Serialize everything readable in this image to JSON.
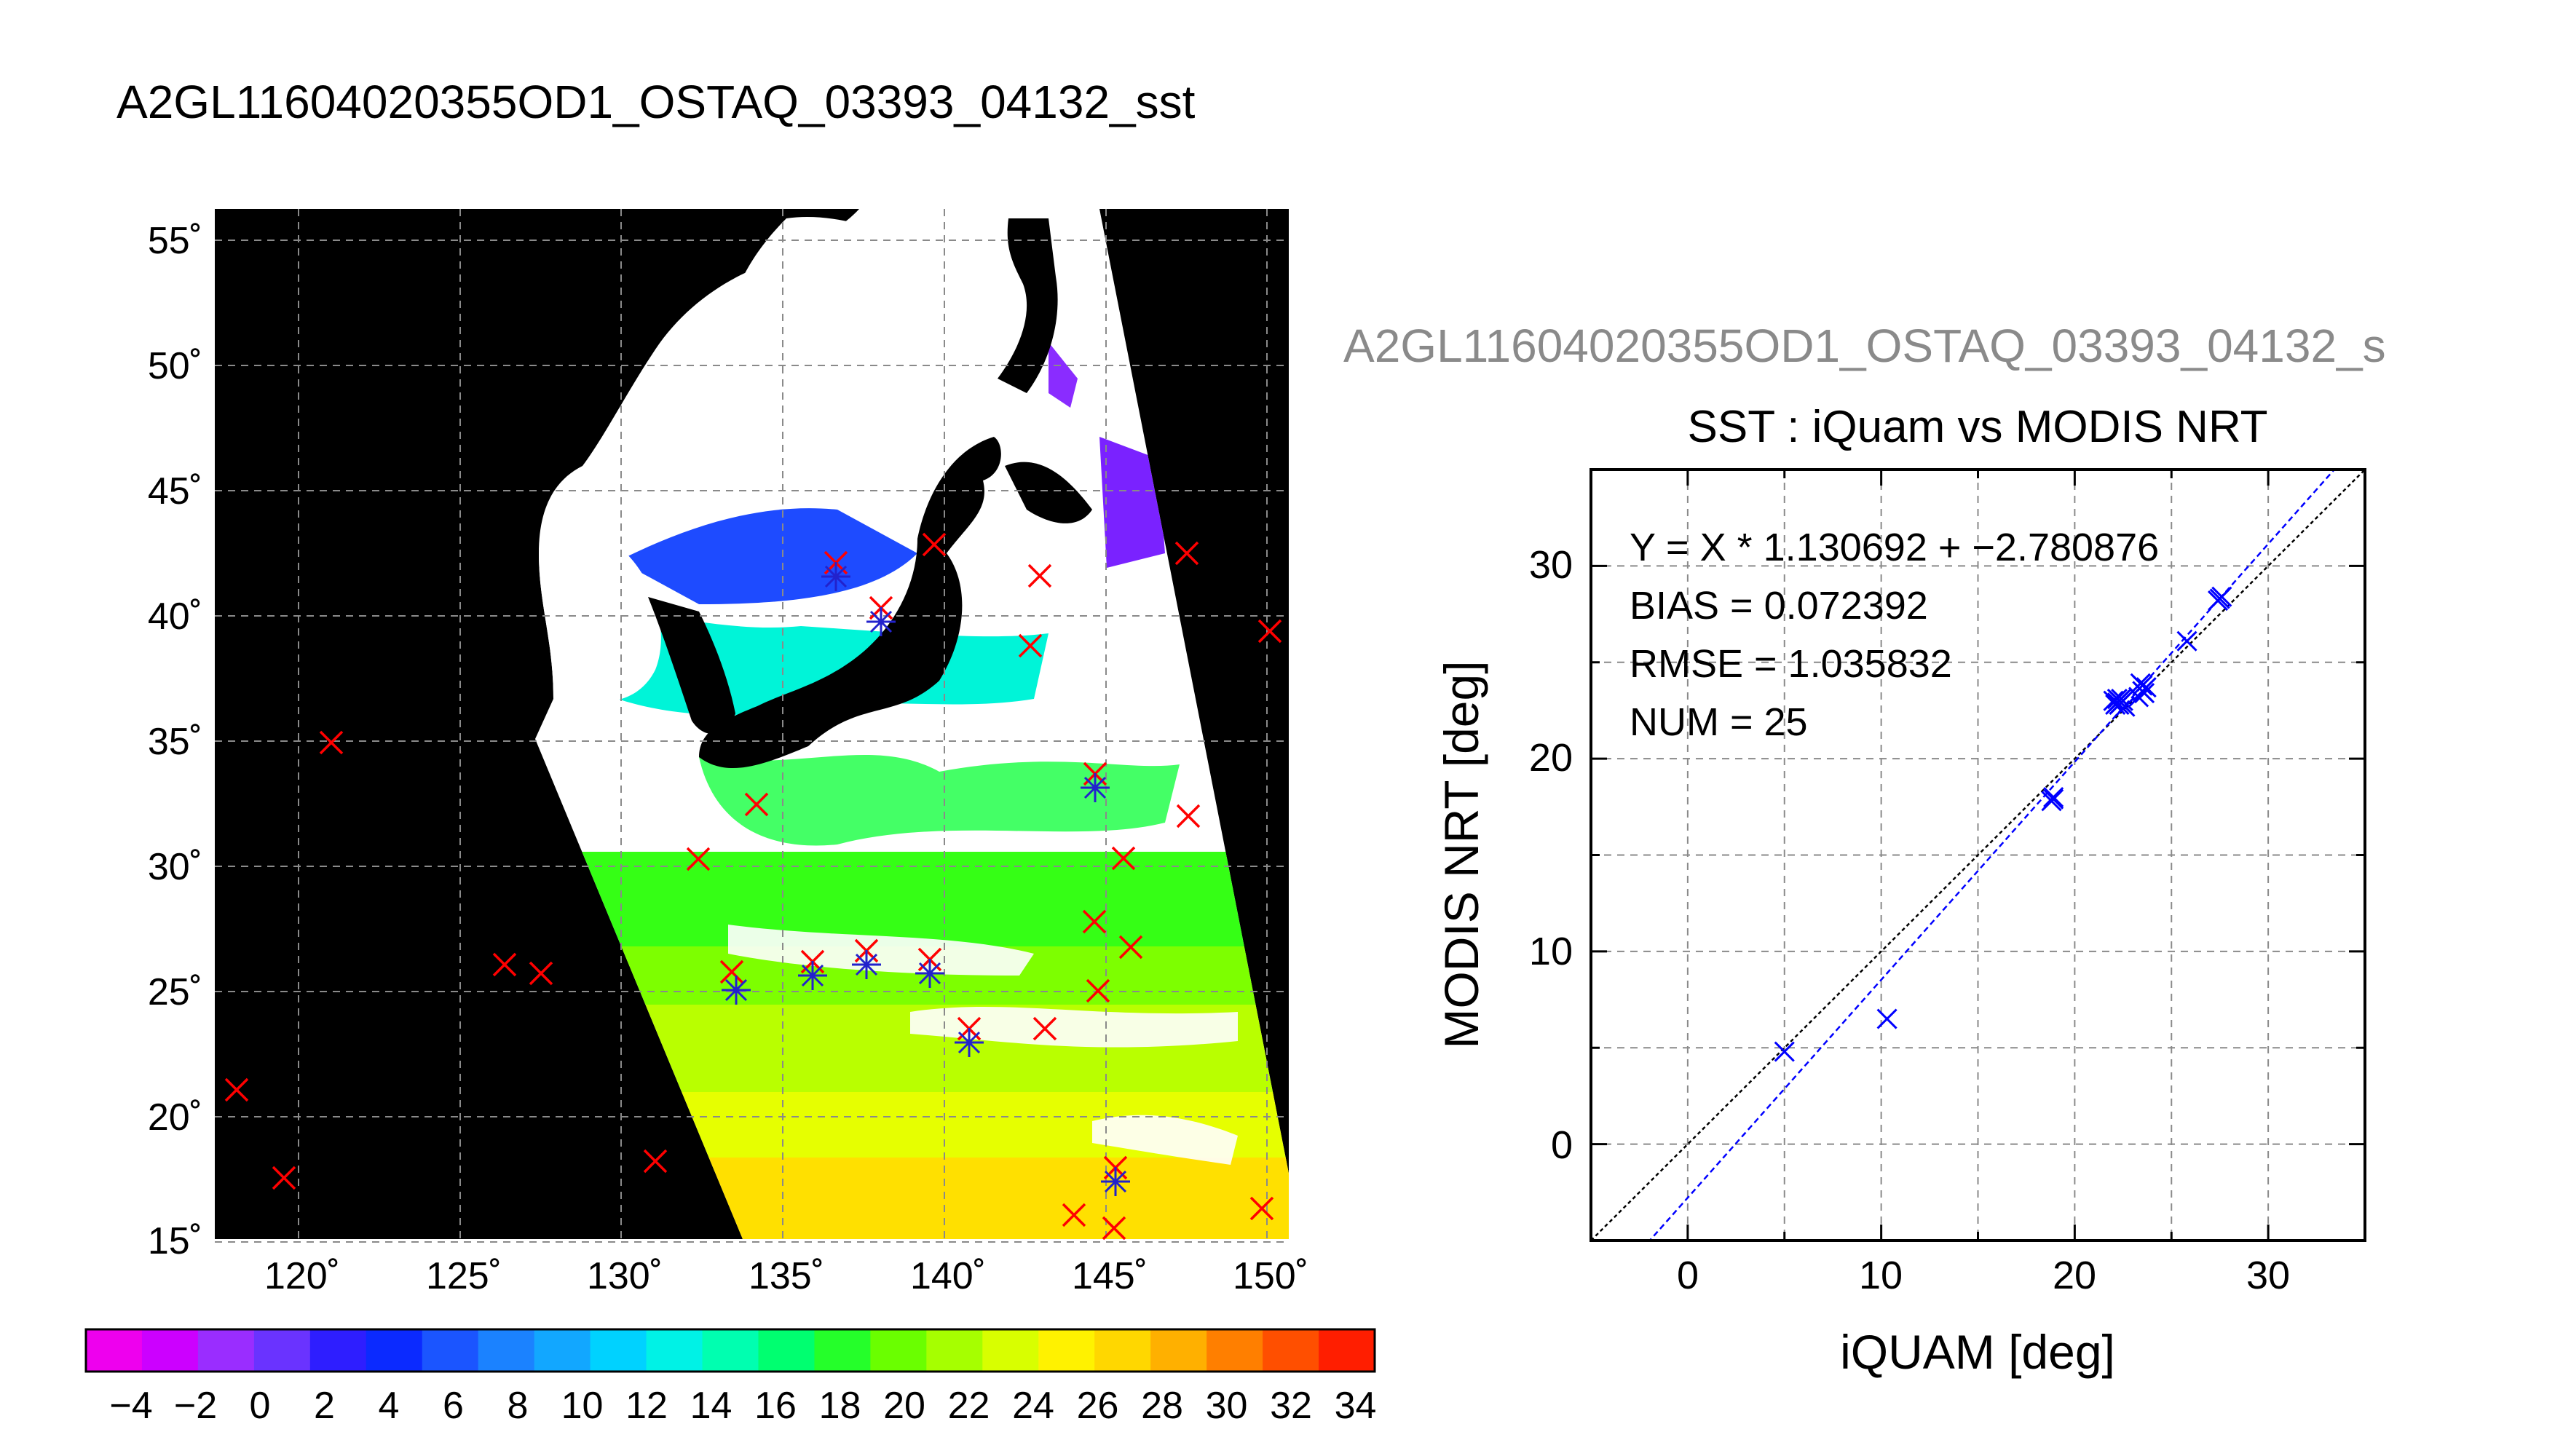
{
  "page_title": "A2GL11604020355OD1_OSTAQ_03393_04132_sst",
  "map": {
    "lat_ticks": [
      "55˚",
      "50˚",
      "45˚",
      "40˚",
      "35˚",
      "30˚",
      "25˚",
      "20˚",
      "15˚"
    ],
    "lon_ticks": [
      "120˚",
      "125˚",
      "130˚",
      "135˚",
      "140˚",
      "145˚",
      "150˚"
    ],
    "colorbar_labels": [
      "−4",
      "−2",
      "0",
      "2",
      "4",
      "6",
      "8",
      "10",
      "12",
      "14",
      "16",
      "18",
      "20",
      "22",
      "24",
      "26",
      "28",
      "30",
      "32",
      "34"
    ],
    "colorbar_colors": [
      "#ee00ee",
      "#cc00ff",
      "#9a2dff",
      "#6a33ff",
      "#2e1eff",
      "#0b2aff",
      "#1b55ff",
      "#1b82ff",
      "#12a7ff",
      "#00d2ff",
      "#00f2e6",
      "#00ffb0",
      "#00ff70",
      "#25ff2a",
      "#6aff00",
      "#a6ff00",
      "#d8ff00",
      "#fff200",
      "#ffd700",
      "#ffb000",
      "#ff7f00",
      "#ff4f00",
      "#ff1e00"
    ],
    "colors": {
      "land": "#000000",
      "cloud": "#ffffff",
      "grid": "#8a8a8a"
    }
  },
  "scatter": {
    "top_title": "A2GL11604020355OD1_OSTAQ_03393_04132_s",
    "title": "SST : iQuam vs MODIS NRT",
    "annotations": [
      "Y = X * 1.130692 + −2.780876",
      "BIAS = 0.072392",
      "RMSE = 1.035832",
      "NUM = 25"
    ],
    "x_ticks": [
      "0",
      "10",
      "20",
      "30"
    ],
    "y_ticks": [
      "0",
      "10",
      "20",
      "30"
    ]
  },
  "chart_data": {
    "type": "scatter",
    "title": "SST : iQuam vs MODIS NRT",
    "xlabel": "iQUAM [deg]",
    "ylabel": "MODIS NRT [deg]",
    "xlim": [
      -5,
      35
    ],
    "ylim": [
      -5,
      35
    ],
    "grid": true,
    "fit": {
      "slope": 1.130692,
      "intercept": -2.780876
    },
    "identity_line": true,
    "points": [
      [
        5.0,
        4.8
      ],
      [
        10.3,
        6.5
      ],
      [
        18.9,
        18.0
      ],
      [
        18.8,
        17.8
      ],
      [
        22.0,
        23.0
      ],
      [
        22.2,
        22.9
      ],
      [
        22.4,
        23.1
      ],
      [
        22.3,
        22.8
      ],
      [
        22.6,
        22.7
      ],
      [
        22.1,
        22.8
      ],
      [
        22.5,
        23.0
      ],
      [
        23.4,
        23.9
      ],
      [
        23.5,
        23.5
      ],
      [
        23.7,
        23.7
      ],
      [
        23.6,
        23.4
      ],
      [
        23.3,
        23.2
      ],
      [
        25.8,
        26.1
      ],
      [
        27.5,
        28.3
      ],
      [
        27.4,
        28.2
      ],
      [
        22.2,
        23.1
      ],
      [
        22.4,
        22.9
      ],
      [
        23.5,
        23.8
      ],
      [
        18.9,
        17.9
      ],
      [
        27.6,
        28.4
      ],
      [
        22.3,
        23.0
      ]
    ],
    "point_color": "#0000ff"
  }
}
